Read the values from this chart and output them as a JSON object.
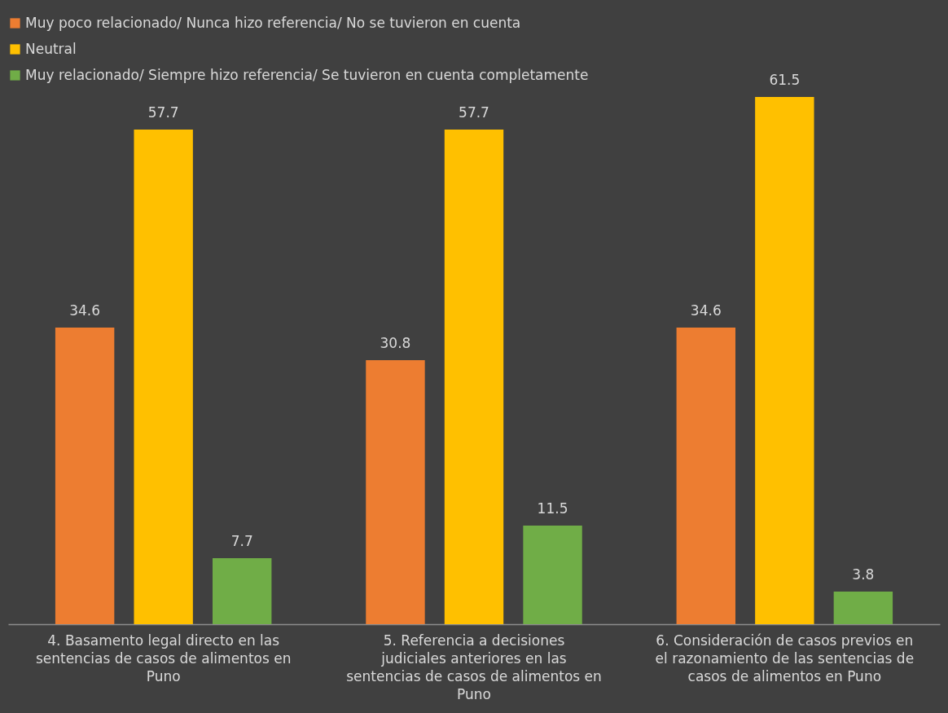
{
  "chart_data": {
    "type": "bar",
    "categories": [
      "4. Basamento legal directo en las sentencias de casos de alimentos en Puno",
      "5. Referencia a decisiones judiciales anteriores en las sentencias de casos de alimentos en Puno",
      "6. Consideración de casos previos en el razonamiento de las sentencias de casos de alimentos en Puno"
    ],
    "series": [
      {
        "name": "Muy poco relacionado/ Nunca hizo referencia/ No se tuvieron en cuenta",
        "color": "#ed7d31",
        "values": [
          34.6,
          30.8,
          34.6
        ]
      },
      {
        "name": "Neutral",
        "color": "#ffc000",
        "values": [
          57.7,
          57.7,
          61.5
        ]
      },
      {
        "name": "Muy relacionado/ Siempre hizo referencia/ Se tuvieron en cuenta completamente",
        "color": "#70ad47",
        "values": [
          7.7,
          11.5,
          3.8
        ]
      }
    ],
    "data_labels": true,
    "legend": "top",
    "grid": false
  }
}
